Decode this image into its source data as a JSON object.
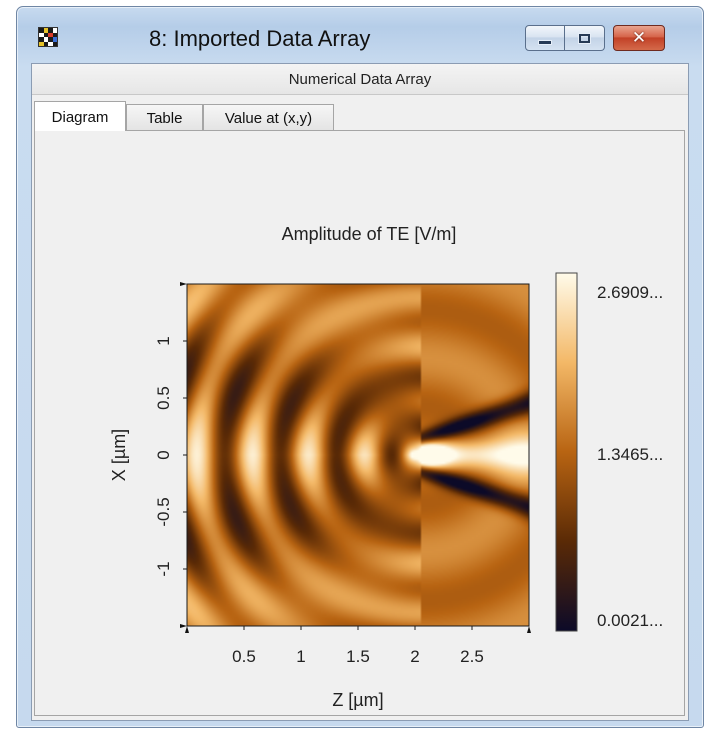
{
  "window": {
    "title": "8: Imported Data Array",
    "buttons": {
      "minimize": "minimize",
      "maximize": "maximize",
      "close": "✕"
    }
  },
  "header": {
    "label": "Numerical Data Array"
  },
  "tabs": [
    {
      "label": "Diagram",
      "active": true
    },
    {
      "label": "Table",
      "active": false
    },
    {
      "label": "Value at (x,y)",
      "active": false
    }
  ],
  "icons": {
    "app": "app-grid-icon",
    "minimize": "minimize-icon",
    "maximize": "maximize-icon",
    "close": "close-icon"
  },
  "chart_data": {
    "type": "heatmap",
    "title": "Amplitude of TE  [V/m]",
    "xlabel": "Z [µm]",
    "ylabel": "X [µm]",
    "xlim": [
      0,
      3
    ],
    "ylim": [
      -1.5,
      1.5
    ],
    "x_ticks": [
      0.5,
      1,
      1.5,
      2,
      2.5
    ],
    "x_tick_labels": [
      "0.5",
      "1",
      "1.5",
      "2",
      "2.5"
    ],
    "y_ticks": [
      -1,
      -0.5,
      0,
      0.5,
      1
    ],
    "y_tick_labels": [
      "-1",
      "-0.5",
      "0",
      "0.5",
      "1"
    ],
    "colorbar": {
      "min": 0.0021,
      "max": 2.6909,
      "tick_labels": [
        "2.6909...",
        "1.3465...",
        "0.0021..."
      ],
      "colors": [
        "#0c0a28",
        "#5a2a06",
        "#b86412",
        "#f3b867",
        "#fffbea"
      ]
    }
  }
}
